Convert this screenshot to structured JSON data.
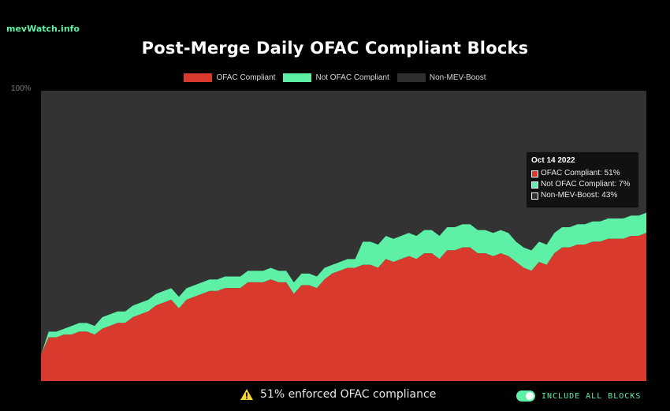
{
  "brand": "mevWatch.info",
  "footer": {
    "status_text": "51% enforced OFAC compliance",
    "toggle_label": "INCLUDE ALL BLOCKS",
    "toggle_on": true
  },
  "colors": {
    "ofac": "#d93a2e",
    "not_ofac": "#5ef0a6",
    "non_mev": "#333333",
    "accent": "#5ef0a6"
  },
  "tooltip": {
    "date": "Oct 14 2022",
    "rows": [
      {
        "label": "OFAC Compliant: 51%",
        "color": "#d93a2e"
      },
      {
        "label": "Not OFAC Compliant: 7%",
        "color": "#5ef0a6"
      },
      {
        "label": "Non-MEV-Boost: 43%",
        "color": "#333333"
      }
    ]
  },
  "chart_data": {
    "type": "area",
    "stacked": true,
    "title": "Post-Merge Daily OFAC Compliant Blocks",
    "ylim": [
      0,
      100
    ],
    "ytick_label": "100%",
    "legend_position": "top-center",
    "grid": false,
    "series": [
      {
        "name": "OFAC Compliant",
        "color": "#d93a2e",
        "values": [
          9,
          15,
          15,
          16,
          16,
          17,
          17,
          16,
          18,
          19,
          20,
          20,
          22,
          23,
          24,
          26,
          27,
          28,
          25,
          28,
          29,
          30,
          31,
          31,
          32,
          32,
          32,
          34,
          34,
          34,
          35,
          34,
          34,
          30,
          33,
          33,
          32,
          35,
          37,
          38,
          39,
          39,
          40,
          40,
          39,
          42,
          41,
          42,
          43,
          42,
          44,
          44,
          42,
          45,
          45,
          46,
          46,
          44,
          44,
          43,
          44,
          43,
          41,
          39,
          38,
          41,
          40,
          44,
          46,
          46,
          47,
          47,
          48,
          48,
          49,
          49,
          49,
          50,
          50,
          51
        ]
      },
      {
        "name": "Not OFAC Compliant",
        "color": "#5ef0a6",
        "values": [
          0,
          2,
          2,
          2,
          3,
          3,
          3,
          3,
          4,
          4,
          4,
          4,
          4,
          4,
          4,
          4,
          4,
          4,
          4,
          4,
          4,
          4,
          4,
          4,
          4,
          4,
          4,
          4,
          4,
          4,
          4,
          4,
          4,
          4,
          4,
          4,
          4,
          4,
          3,
          3,
          3,
          3,
          8,
          8,
          8,
          8,
          8,
          8,
          8,
          8,
          8,
          8,
          8,
          8,
          8,
          8,
          8,
          8,
          8,
          8,
          8,
          8,
          7,
          7,
          7,
          7,
          7,
          7,
          7,
          7,
          7,
          7,
          7,
          7,
          7,
          7,
          7,
          7,
          7,
          7
        ]
      },
      {
        "name": "Non-MEV-Boost",
        "color": "#333333",
        "values": [
          91,
          83,
          83,
          82,
          81,
          80,
          80,
          81,
          78,
          77,
          76,
          76,
          74,
          73,
          72,
          70,
          69,
          68,
          71,
          68,
          67,
          66,
          65,
          65,
          64,
          64,
          64,
          62,
          62,
          62,
          61,
          62,
          62,
          66,
          63,
          63,
          64,
          61,
          60,
          59,
          58,
          58,
          52,
          52,
          53,
          50,
          51,
          50,
          49,
          50,
          48,
          48,
          50,
          47,
          47,
          46,
          46,
          48,
          48,
          49,
          48,
          49,
          52,
          54,
          55,
          52,
          53,
          49,
          47,
          47,
          46,
          46,
          45,
          45,
          44,
          44,
          44,
          43,
          43,
          42
        ]
      }
    ]
  }
}
